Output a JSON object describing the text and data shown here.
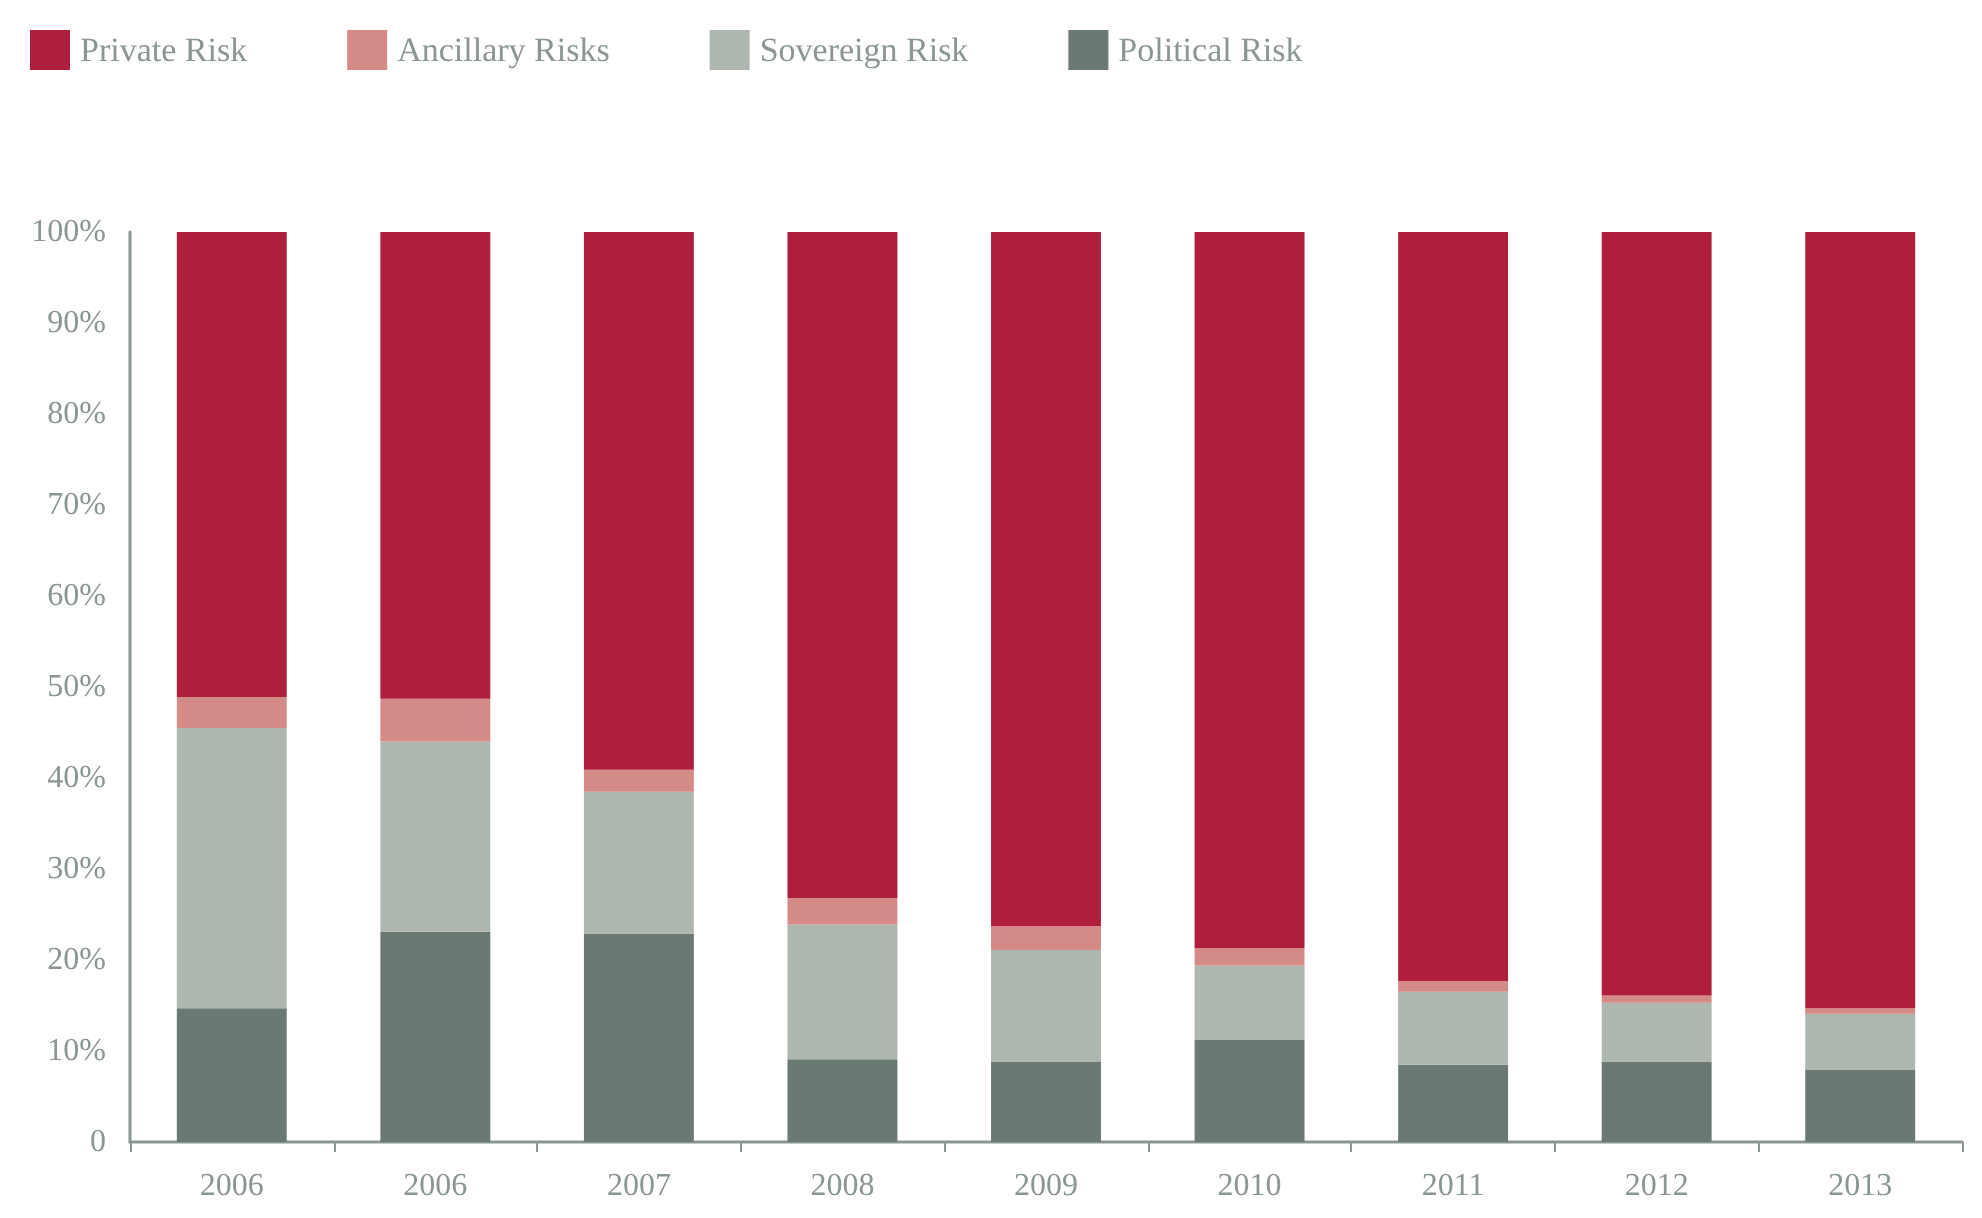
{
  "chart_data": {
    "type": "bar",
    "stacked": true,
    "categories": [
      "2006",
      "2006",
      "2007",
      "2008",
      "2009",
      "2010",
      "2011",
      "2012",
      "2013"
    ],
    "series": [
      {
        "name": "Political Risk",
        "color": "#6a7971",
        "values": [
          14.7,
          23.1,
          22.9,
          9.1,
          8.8,
          11.2,
          8.5,
          8.8,
          7.9
        ]
      },
      {
        "name": "Sovereign Risk",
        "color": "#aeb6b0",
        "values": [
          30.8,
          20.9,
          15.6,
          14.8,
          12.3,
          8.2,
          8.0,
          6.5,
          6.2
        ]
      },
      {
        "name": "Ancillary Risks",
        "color": "#d48a87",
        "values": [
          3.4,
          4.7,
          2.4,
          2.9,
          2.6,
          1.9,
          1.2,
          0.8,
          0.6
        ]
      },
      {
        "name": "Private Risk",
        "color": "#b01e3e",
        "values": [
          51.1,
          51.3,
          59.1,
          73.2,
          76.3,
          78.7,
          82.3,
          83.9,
          85.3
        ]
      }
    ],
    "ylim": [
      0,
      100
    ],
    "yticks": [
      {
        "value": 0,
        "label": "0"
      },
      {
        "value": 10,
        "label": "10%"
      },
      {
        "value": 20,
        "label": "20%"
      },
      {
        "value": 30,
        "label": "30%"
      },
      {
        "value": 40,
        "label": "40%"
      },
      {
        "value": 50,
        "label": "50%"
      },
      {
        "value": 60,
        "label": "60%"
      },
      {
        "value": 70,
        "label": "70%"
      },
      {
        "value": 80,
        "label": "80%"
      },
      {
        "value": 90,
        "label": "90%"
      },
      {
        "value": 100,
        "label": "100%"
      }
    ],
    "grid": false,
    "legend": "top left"
  }
}
